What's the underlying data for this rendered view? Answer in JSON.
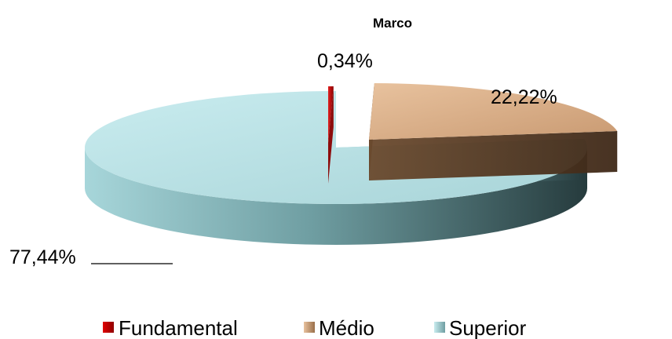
{
  "chart_data": {
    "type": "pie",
    "title_lines": [
      "Marco"
    ],
    "categories": [
      "Fundamental",
      "Médio",
      "Superior"
    ],
    "values": [
      0.34,
      22.22,
      77.44
    ],
    "data_labels": [
      "0,34%",
      "22,22%",
      "77,44%"
    ],
    "unit": "%",
    "colors": [
      "#c00000",
      "#d9ad85",
      "#bfe3e6"
    ],
    "legend_position": "bottom",
    "style": "3d-exploded"
  }
}
